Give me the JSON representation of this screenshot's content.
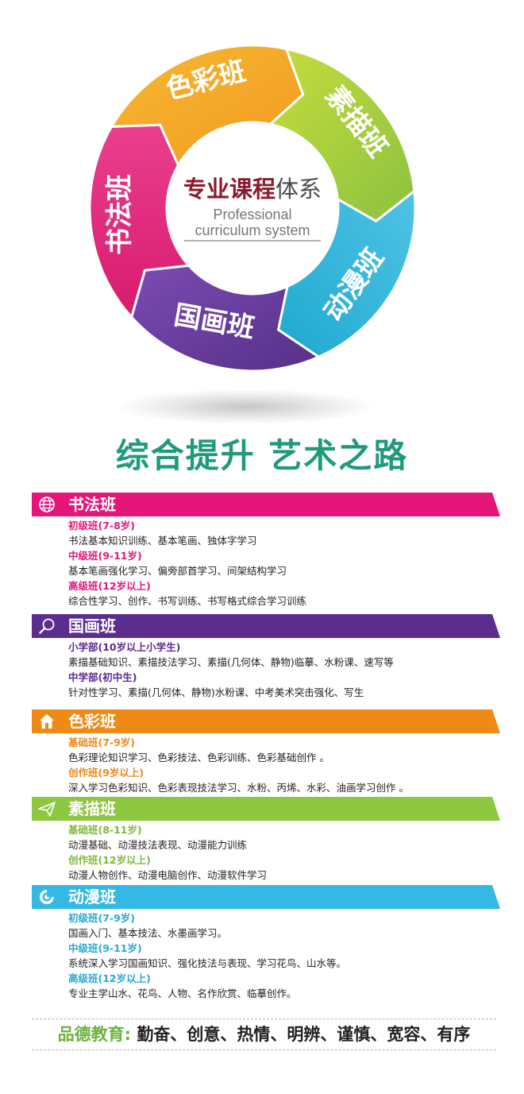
{
  "wheel": {
    "center_title_bold": "专业课程",
    "center_title_light": "体系",
    "center_sub_1": "Professional",
    "center_sub_2": "curriculum system",
    "segments": [
      {
        "label": "色彩班",
        "color": "#f5a623"
      },
      {
        "label": "素描班",
        "color": "#9bc53d"
      },
      {
        "label": "动漫班",
        "color": "#29b6d9"
      },
      {
        "label": "国画班",
        "color": "#6b3fa0"
      },
      {
        "label": "书法班",
        "color": "#e8277b"
      }
    ]
  },
  "slogan": "综合提升  艺术之路",
  "sections": [
    {
      "title": "书法班",
      "color": "#e5157a",
      "icon": "globe-icon",
      "items": [
        {
          "level": "初级班(7-8岁)",
          "desc": "书法基本知识训练、基本笔画、独体字学习"
        },
        {
          "level": "中级班(9-11岁)",
          "desc": "基本笔画强化学习、偏旁部首学习、间架结构学习"
        },
        {
          "level": "高级班(12岁以上)",
          "desc": "综合性学习、创作、书写训练、书写格式综合学习训练"
        }
      ]
    },
    {
      "title": "国画班",
      "color": "#5b2d8e",
      "icon": "search-icon",
      "items": [
        {
          "level": "小学部(10岁以上小学生)",
          "desc": "素描基础知识、素描技法学习、素描(几何体、静物)临摹、水粉课、速写等"
        },
        {
          "level": "中学部(初中生)",
          "desc": "针对性学习、素描(几何体、静物)水粉课、中考美术突击强化、写生"
        }
      ]
    },
    {
      "title": "色彩班",
      "color": "#ef8a17",
      "icon": "home-icon",
      "items": [
        {
          "level": "基础班(7-9岁)",
          "desc": "色彩理论知识学习、色彩技法、色彩训练、色彩基础创作 。"
        },
        {
          "level": "创作班(9岁以上)",
          "desc": "深入学习色彩知识、色彩表现技法学习、水粉、丙烯、水彩、油画学习创作 。"
        }
      ]
    },
    {
      "title": "素描班",
      "color": "#8dc63f",
      "icon": "paper-plane-icon",
      "items": [
        {
          "level": "基础班(8-11岁)",
          "desc": "动漫基础、动漫技法表现、动漫能力训练"
        },
        {
          "level": "创作班(12岁以上)",
          "desc": "动漫人物创作、动漫电脑创作、动漫软件学习"
        }
      ]
    },
    {
      "title": "动漫班",
      "color": "#33b9e3",
      "icon": "target-icon",
      "items": [
        {
          "level": "初级班(7-9岁)",
          "desc": "国画入门、基本技法、水墨画学习。"
        },
        {
          "level": "中级班(9-11岁)",
          "desc": "系统深入学习国画知识、强化技法与表现、学习花鸟、山水等。"
        },
        {
          "level": "高级班(12岁以上)",
          "desc": "专业主学山水、花鸟、人物、名作欣赏、临摹创作。"
        }
      ]
    }
  ],
  "moral": {
    "key": "品德教育:",
    "values": "勤奋、创意、热情、明辨、谨慎、宽容、有序"
  }
}
